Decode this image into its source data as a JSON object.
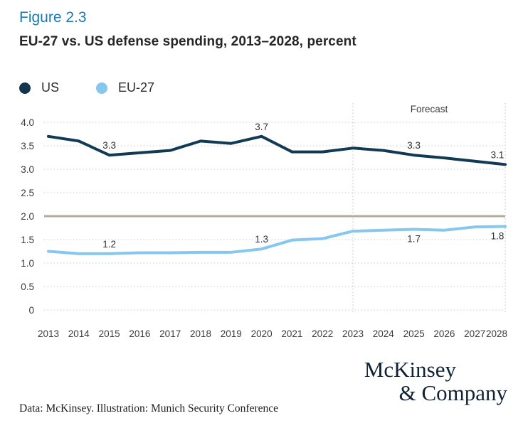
{
  "figure_label": "Figure 2.3",
  "title": "EU-27 vs. US defense spending, 2013–2028, percent",
  "legend": {
    "items": [
      {
        "label": "US",
        "color": "#12344f"
      },
      {
        "label": "EU-27",
        "color": "#85c7ee"
      }
    ]
  },
  "source_note": "Data: McKinsey. Illustration: Munich Security Conference",
  "logo": {
    "line1": "McKinsey",
    "line2": "& Company"
  },
  "chart_data": {
    "type": "line",
    "title": "EU-27 vs. US defense spending, 2013–2028, percent",
    "x": [
      2013,
      2014,
      2015,
      2016,
      2017,
      2018,
      2019,
      2020,
      2021,
      2022,
      2023,
      2024,
      2025,
      2026,
      2027,
      2028
    ],
    "series": [
      {
        "name": "US",
        "color": "#123a54",
        "values": [
          3.7,
          3.6,
          3.3,
          3.35,
          3.4,
          3.6,
          3.55,
          3.7,
          3.37,
          3.37,
          3.45,
          3.4,
          3.3,
          3.24,
          3.17,
          3.1
        ]
      },
      {
        "name": "EU-27",
        "color": "#85c7ee",
        "values": [
          1.25,
          1.2,
          1.2,
          1.22,
          1.22,
          1.23,
          1.23,
          1.3,
          1.49,
          1.52,
          1.68,
          1.7,
          1.72,
          1.7,
          1.77,
          1.78
        ]
      }
    ],
    "point_labels": [
      {
        "series": "US",
        "year": 2015,
        "text": "3.3",
        "position": "above"
      },
      {
        "series": "US",
        "year": 2020,
        "text": "3.7",
        "position": "above"
      },
      {
        "series": "US",
        "year": 2025,
        "text": "3.3",
        "position": "above"
      },
      {
        "series": "US",
        "year": 2028,
        "text": "3.1",
        "position": "above"
      },
      {
        "series": "EU-27",
        "year": 2015,
        "text": "1.2",
        "position": "above"
      },
      {
        "series": "EU-27",
        "year": 2020,
        "text": "1.3",
        "position": "above"
      },
      {
        "series": "EU-27",
        "year": 2025,
        "text": "1.7",
        "position": "below"
      },
      {
        "series": "EU-27",
        "year": 2028,
        "text": "1.8",
        "position": "below"
      }
    ],
    "ylim": [
      0,
      4.0
    ],
    "yticks": [
      "4.0",
      "3.5",
      "3.0",
      "2.5",
      "2.0",
      "1.5",
      "1.0",
      "0.5",
      "0"
    ],
    "reference_line": {
      "value": 2.0,
      "color": "#b5a9a0"
    },
    "forecast": {
      "label": "Forecast",
      "start_year": 2023,
      "end_year": 2028
    },
    "grid": "horizontal-dotted",
    "legend_position": "top-left"
  }
}
